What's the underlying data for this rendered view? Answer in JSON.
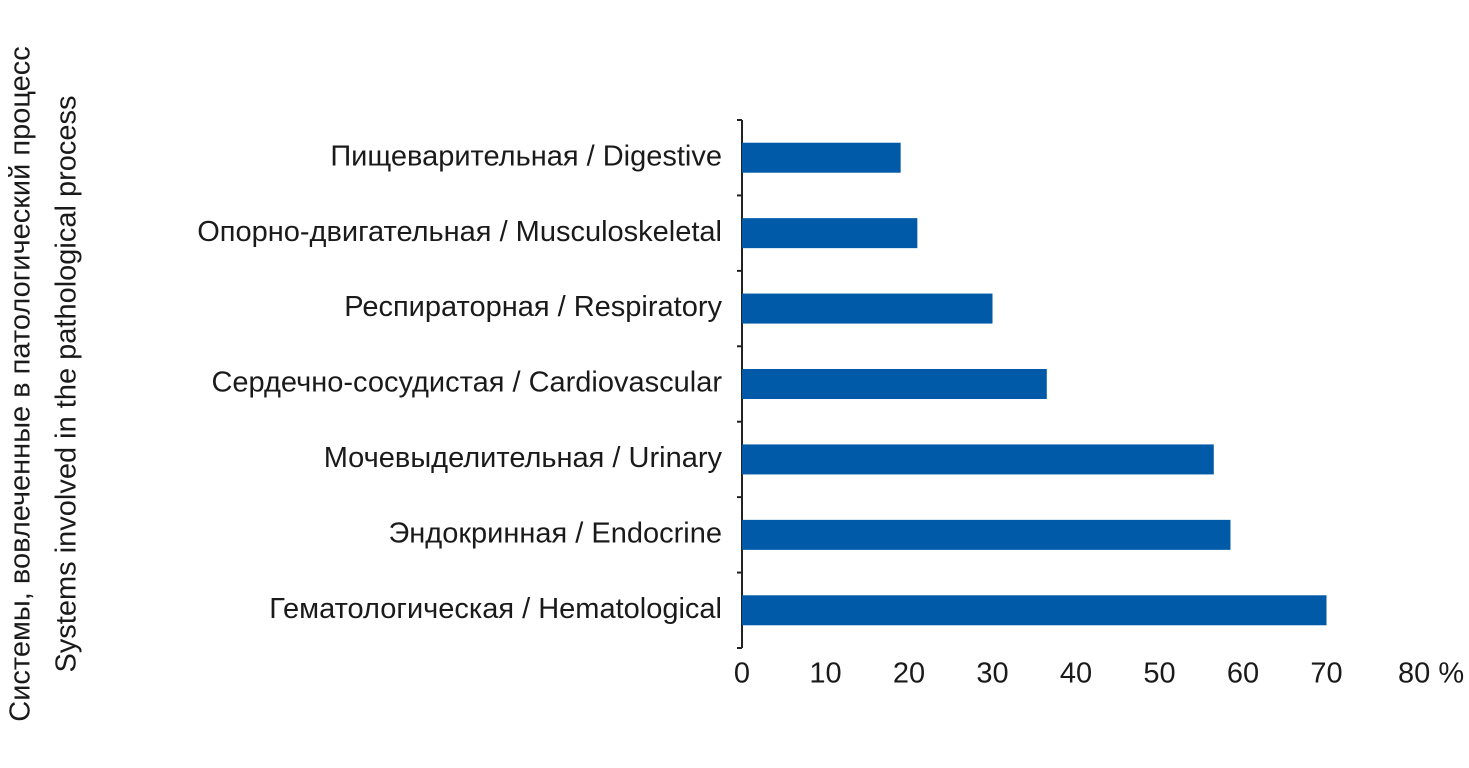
{
  "chart_data": {
    "type": "barh",
    "ylabel": [
      "Системы, вовлеченные в патологический процесс",
      "Systems involved in the pathological process"
    ],
    "categories": [
      "Пищеварительная / Digestive",
      "Опорно-двигательная / Musculoskeletal",
      "Респираторная / Respiratory",
      "Сердечно-сосудистая / Cardiovascular",
      "Мочевыделительная / Urinary",
      "Эндокринная / Endocrine",
      "Гематологическая / Hematological"
    ],
    "values": [
      19,
      21,
      30,
      36.5,
      56.5,
      58.5,
      70
    ],
    "color": "#005aa8",
    "xlim": [
      0,
      80
    ],
    "xticks": [
      0,
      10,
      20,
      30,
      40,
      50,
      60,
      70,
      {
        "value": 80,
        "label": "80 %"
      }
    ],
    "grid": false
  }
}
